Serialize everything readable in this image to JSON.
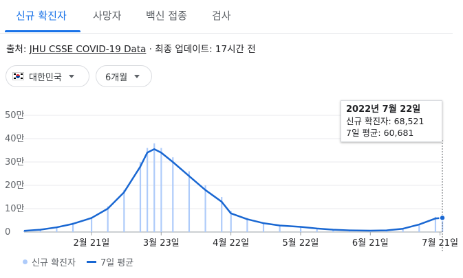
{
  "tabs": [
    "신규 확진자",
    "사망자",
    "백신 접종",
    "검사"
  ],
  "source": {
    "prefix": "출처: ",
    "link": "JHU CSSE COVID-19 Data",
    "suffix": " · 최종 업데이트: 17시간 전"
  },
  "filters": {
    "country": "대한민국",
    "country_flag_icon": "korea-flag-icon",
    "range": "6개월"
  },
  "tooltip": {
    "date": "2022년 7월 22일",
    "new_cases": "신규 확진자: 68,521",
    "avg": "7일 평균: 60,681"
  },
  "legend": {
    "bars": "신규 확진자",
    "line": "7일 평균"
  },
  "colors": {
    "accent": "#1a73e8",
    "bar": "#aecbfa",
    "line": "#1967d2"
  },
  "chart_data": {
    "type": "bar",
    "series": [
      {
        "name": "신규 확진자",
        "type": "bar",
        "x": [
          "2022-01-23",
          "2022-01-30",
          "2022-02-06",
          "2022-02-13",
          "2022-02-21",
          "2022-02-28",
          "2022-03-07",
          "2022-03-14",
          "2022-03-17",
          "2022-03-20",
          "2022-03-23",
          "2022-03-28",
          "2022-04-04",
          "2022-04-11",
          "2022-04-18",
          "2022-04-22",
          "2022-04-29",
          "2022-05-06",
          "2022-05-13",
          "2022-05-22",
          "2022-05-29",
          "2022-06-05",
          "2022-06-12",
          "2022-06-21",
          "2022-06-28",
          "2022-07-05",
          "2022-07-12",
          "2022-07-19",
          "2022-07-22"
        ],
        "y": [
          6000,
          12000,
          22000,
          40000,
          65000,
          110000,
          180000,
          300000,
          360000,
          380000,
          360000,
          320000,
          260000,
          200000,
          150000,
          90000,
          60000,
          40000,
          30000,
          25000,
          18000,
          12000,
          8000,
          7000,
          8000,
          15000,
          35000,
          65000,
          68521
        ]
      },
      {
        "name": "7일 평균",
        "type": "line",
        "x": [
          "2022-01-23",
          "2022-01-30",
          "2022-02-06",
          "2022-02-13",
          "2022-02-21",
          "2022-02-28",
          "2022-03-07",
          "2022-03-14",
          "2022-03-17",
          "2022-03-20",
          "2022-03-23",
          "2022-03-28",
          "2022-04-04",
          "2022-04-11",
          "2022-04-18",
          "2022-04-22",
          "2022-04-29",
          "2022-05-06",
          "2022-05-13",
          "2022-05-22",
          "2022-05-29",
          "2022-06-05",
          "2022-06-12",
          "2022-06-21",
          "2022-06-28",
          "2022-07-05",
          "2022-07-12",
          "2022-07-19",
          "2022-07-22"
        ],
        "y": [
          5000,
          10000,
          20000,
          35000,
          60000,
          100000,
          170000,
          280000,
          340000,
          355000,
          340000,
          300000,
          240000,
          180000,
          130000,
          80000,
          55000,
          38000,
          28000,
          22000,
          15000,
          10000,
          7000,
          6000,
          7000,
          14000,
          32000,
          58000,
          60681
        ]
      }
    ],
    "x_ticks": [
      "2월 21일",
      "3월 23일",
      "4월 22일",
      "5월 22일",
      "6월 21일",
      "7월 21일"
    ],
    "y_ticks": [
      "0",
      "10만",
      "20만",
      "30만",
      "40만",
      "50만"
    ],
    "ylim": [
      0,
      500000
    ],
    "grid": true,
    "legend_position": "bottom-left"
  }
}
